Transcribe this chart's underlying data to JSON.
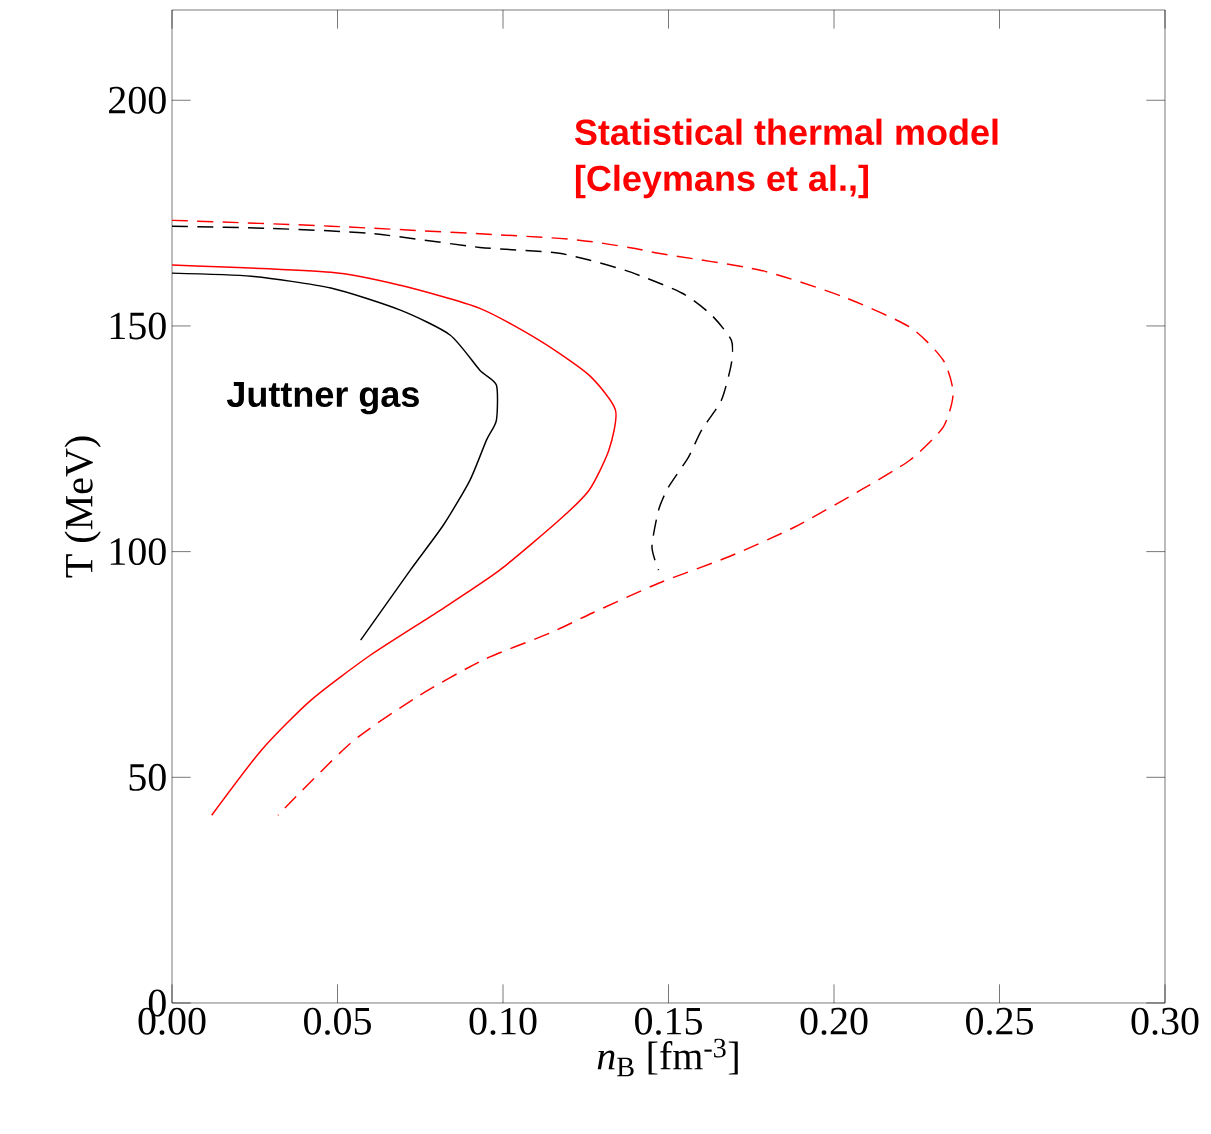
{
  "chart_data": {
    "type": "line",
    "xlabel": "*n*$_{B}$ [fm$^{-3}$]",
    "ylabel": "T (MeV)",
    "xlim": [
      0,
      0.3
    ],
    "ylim": [
      0,
      220
    ],
    "xticks": [
      {
        "value": 0,
        "label": "0.00"
      },
      {
        "value": 0.05,
        "label": "0.05"
      },
      {
        "value": 0.1,
        "label": "0.10"
      },
      {
        "value": 0.15,
        "label": "0.15"
      },
      {
        "value": 0.2,
        "label": "0.20"
      },
      {
        "value": 0.25,
        "label": "0.25"
      },
      {
        "value": 0.3,
        "label": "0.30"
      }
    ],
    "yticks": [
      0,
      50,
      100,
      150,
      200
    ],
    "grid": false,
    "marker": "none",
    "annotations": [
      "Juttner gas",
      "Statistical thermal model",
      "[Cleymans et al.,]"
    ],
    "series": [
      {
        "color": "#000000",
        "line_style": "dashed",
        "x": [
          0,
          0.03,
          0.06,
          0.093,
          0.117,
          0.137,
          0.154,
          0.163,
          0.169,
          0.169,
          0.166,
          0.16,
          0.156,
          0.15,
          0.147,
          0.145,
          0.147
        ],
        "values": [
          172.1,
          171.6,
          170.5,
          167.4,
          166.1,
          162.3,
          157.3,
          152.4,
          146.8,
          141.7,
          133.6,
          126.9,
          120.9,
          114.3,
          109.2,
          101,
          95.9
        ]
      },
      {
        "color": "#ff0000",
        "line_style": "dashed",
        "x": [
          0,
          0.048,
          0.117,
          0.138,
          0.147,
          0.178,
          0.203,
          0.223,
          0.233,
          0.236,
          0.233,
          0.223,
          0.208,
          0.188,
          0.168,
          0.147,
          0.127,
          0.114,
          0.094,
          0.074,
          0.054,
          0.032
        ],
        "values": [
          173.4,
          172.1,
          169.4,
          167.4,
          166.1,
          162.3,
          156.4,
          149.7,
          142.4,
          135.1,
          127.6,
          120.3,
          113.6,
          105.4,
          98.8,
          93,
          86.4,
          81.9,
          76,
          67.8,
          57.6,
          41.6
        ]
      },
      {
        "color": "#000000",
        "line_style": "solid",
        "x": [
          0,
          0.024,
          0.048,
          0.069,
          0.084,
          0.093,
          0.098,
          0.098,
          0.095,
          0.09,
          0.082,
          0.072,
          0.057
        ],
        "values": [
          161.7,
          161,
          158.4,
          153.5,
          148,
          140.2,
          136.9,
          129.1,
          124.7,
          115.8,
          105.9,
          95.9,
          80.4
        ]
      },
      {
        "color": "#ff0000",
        "line_style": "solid",
        "x": [
          0,
          0.048,
          0.069,
          0.093,
          0.111,
          0.126,
          0.134,
          0.132,
          0.126,
          0.117,
          0.099,
          0.081,
          0.06,
          0.042,
          0.027,
          0.012
        ],
        "values": [
          163.5,
          161.9,
          159,
          153.9,
          146.8,
          139.1,
          131.3,
          122.5,
          113.6,
          107,
          95.9,
          87,
          77.1,
          67.1,
          56,
          41.6
        ]
      }
    ]
  }
}
